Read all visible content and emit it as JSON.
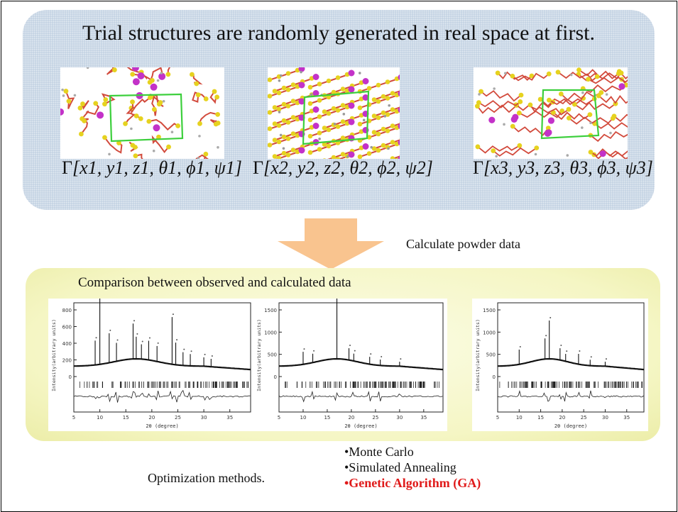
{
  "top_panel": {
    "title": "Trial structures are randomly generated in real space at first.",
    "structures": [
      {
        "prefix": "Γ",
        "params": "[x1, y1, z1, θ1, ϕ1, ψ1]"
      },
      {
        "prefix": "Γ",
        "params": "[x2, y2, z2, θ2, ϕ2, ψ2]"
      },
      {
        "prefix": "Γ",
        "params": "[x3, y3, z3, θ3, ϕ3, ψ3]"
      }
    ]
  },
  "arrow_label": "Calculate powder data",
  "comparison_panel": {
    "title": "Comparison between observed and calculated data",
    "patterns": [
      {
        "ylabel": "Intensity(arbitrary units)",
        "xlabel": "2θ (degree)",
        "yticks": [
          "800",
          "600",
          "400",
          "200",
          "0"
        ],
        "xticks": [
          "5",
          "10",
          "15",
          "20",
          "25",
          "30",
          "35"
        ]
      },
      {
        "ylabel": "Intensity(arbitrary units)",
        "xlabel": "2θ (degree)",
        "yticks": [
          "1500",
          "1000",
          "500",
          "0"
        ],
        "xticks": [
          "5",
          "10",
          "15",
          "20",
          "25",
          "30",
          "35"
        ]
      },
      {
        "ylabel": "Intensity(arbitrary units)",
        "xlabel": "2θ (degree)",
        "yticks": [
          "1500",
          "1000",
          "500",
          "0"
        ],
        "xticks": [
          "5",
          "10",
          "15",
          "20",
          "25",
          "30",
          "35"
        ]
      }
    ]
  },
  "optimization": {
    "label": "Optimization methods.",
    "methods": [
      "•Monte Carlo",
      "•Simulated Annealing"
    ],
    "highlighted_method": "•Genetic Algorithm (GA)"
  },
  "colors": {
    "top_panel": "#c2d1e2",
    "comparison_panel": "#f5f6c4",
    "arrow": "#f9c48f",
    "highlight": "#e01a1a",
    "cell": "#3ccf3c"
  }
}
